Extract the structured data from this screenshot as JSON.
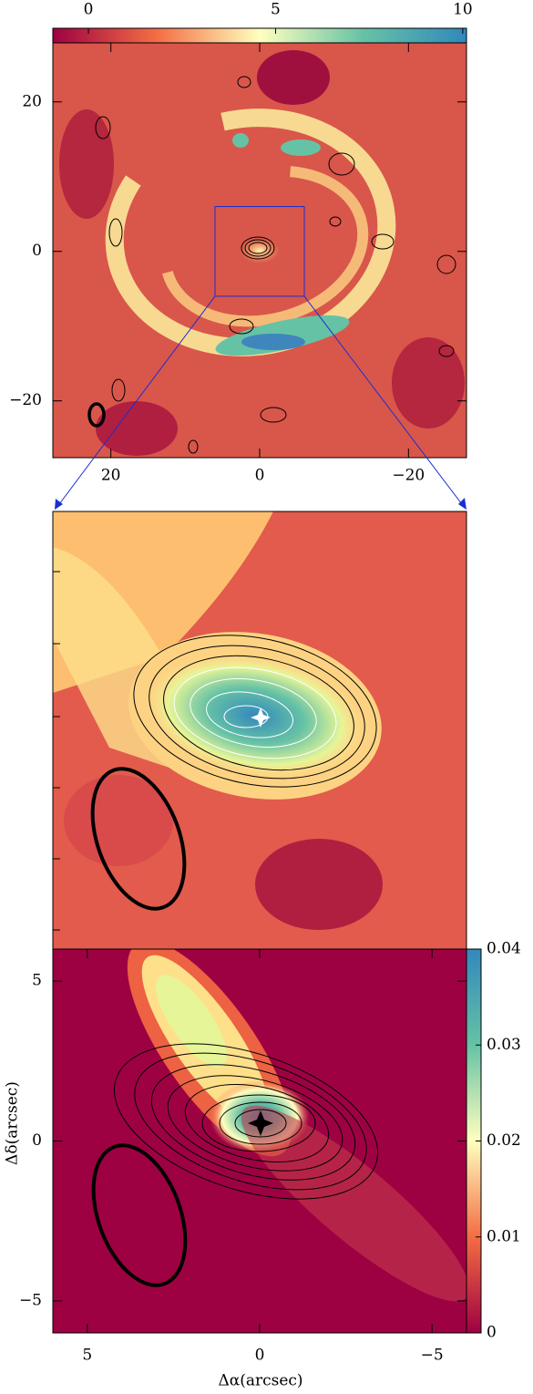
{
  "chart_data": [
    {
      "type": "heatmap",
      "xlim": [
        27.8,
        -27.8
      ],
      "ylim": [
        -27.6,
        27.9
      ],
      "xticks": [
        20,
        0,
        {
          "value": -20,
          "label": "−20"
        }
      ],
      "yticks": [
        {
          "value": -20,
          "label": "−20"
        },
        0,
        20
      ],
      "colorbar": {
        "position": "top",
        "clim": [
          -0.95,
          10.1
        ],
        "ticks": [
          0,
          5,
          10
        ]
      }
    },
    {
      "type": "heatmap",
      "xlim": [
        6,
        -6
      ],
      "ylim": [
        -6,
        6
      ]
    },
    {
      "type": "heatmap",
      "xlim": [
        6,
        -6
      ],
      "ylim": [
        -6,
        6
      ],
      "xticks": [
        5,
        0,
        {
          "value": -5,
          "label": "−5"
        }
      ],
      "yticks": [
        {
          "value": -5,
          "label": "−5"
        },
        0,
        5
      ],
      "x_label": "Δα(arcsec)",
      "y_label": "Δδ(arcsec)",
      "colorbar": {
        "position": "right",
        "clim": [
          0,
          0.04
        ],
        "ticks": [
          0,
          0.01,
          0.02,
          0.03,
          0.04
        ]
      }
    }
  ]
}
